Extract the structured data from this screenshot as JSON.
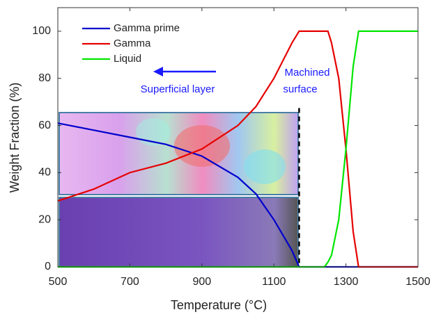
{
  "chart_data": {
    "type": "line",
    "x": [
      500,
      600,
      700,
      800,
      900,
      1000,
      1050,
      1100,
      1150,
      1170,
      1240,
      1250,
      1260,
      1280,
      1300,
      1320,
      1335,
      1500
    ],
    "series": [
      {
        "name": "Gamma prime",
        "color": "#0000cc",
        "values": [
          61,
          58,
          55,
          52,
          47,
          38,
          31,
          20,
          7,
          0,
          0,
          0,
          0,
          0,
          0,
          0,
          0,
          0
        ]
      },
      {
        "name": "Gamma",
        "color": "#e60000",
        "values": [
          28,
          33,
          40,
          44,
          50,
          60,
          68,
          80,
          95,
          100,
          100,
          100,
          95,
          80,
          50,
          15,
          0,
          0
        ]
      },
      {
        "name": "Liquid",
        "color": "#00e600",
        "values": [
          0,
          0,
          0,
          0,
          0,
          0,
          0,
          0,
          0,
          0,
          0,
          2,
          5,
          20,
          50,
          85,
          100,
          100
        ]
      }
    ],
    "xlabel": "Temperature (°C)",
    "ylabel": "Weight Fraction (%)",
    "xlim": [
      500,
      1500
    ],
    "xticks": [
      500,
      700,
      900,
      1100,
      1300,
      1500
    ],
    "ylim": [
      0,
      110
    ],
    "yticks": [
      0,
      20,
      40,
      60,
      80,
      100
    ],
    "grid": false,
    "legend": "upper-left",
    "vline": 1170,
    "annotations": [
      "Machined",
      "surface",
      "Superficial layer"
    ]
  }
}
